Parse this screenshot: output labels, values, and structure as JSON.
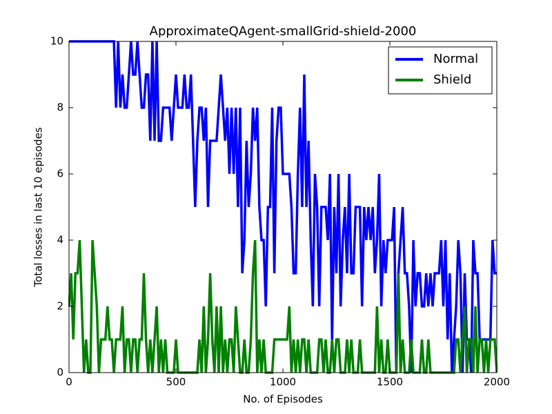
{
  "chart_data": {
    "type": "line",
    "title": "ApproximateQAgent-smallGrid-shield-2000",
    "x_label": "No. of Episodes",
    "y_label": "Total losses in last 10 episodes",
    "x": [
      0,
      10,
      20,
      30,
      40,
      50,
      60,
      70,
      80,
      90,
      100,
      110,
      120,
      130,
      140,
      150,
      160,
      170,
      180,
      190,
      200,
      210,
      220,
      230,
      240,
      250,
      260,
      270,
      280,
      290,
      300,
      310,
      320,
      330,
      340,
      350,
      360,
      370,
      380,
      390,
      400,
      410,
      420,
      430,
      440,
      450,
      460,
      470,
      480,
      490,
      500,
      510,
      520,
      530,
      540,
      550,
      560,
      570,
      580,
      590,
      600,
      610,
      620,
      630,
      640,
      650,
      660,
      670,
      680,
      690,
      700,
      710,
      720,
      730,
      740,
      750,
      760,
      770,
      780,
      790,
      800,
      810,
      820,
      830,
      840,
      850,
      860,
      870,
      880,
      890,
      900,
      910,
      920,
      930,
      940,
      950,
      960,
      970,
      980,
      990,
      1000,
      1010,
      1020,
      1030,
      1040,
      1050,
      1060,
      1070,
      1080,
      1090,
      1100,
      1110,
      1120,
      1130,
      1140,
      1150,
      1160,
      1170,
      1180,
      1190,
      1200,
      1210,
      1220,
      1230,
      1240,
      1250,
      1260,
      1270,
      1280,
      1290,
      1300,
      1310,
      1320,
      1330,
      1340,
      1350,
      1360,
      1370,
      1380,
      1390,
      1400,
      1410,
      1420,
      1430,
      1440,
      1450,
      1460,
      1470,
      1480,
      1490,
      1500,
      1510,
      1520,
      1530,
      1540,
      1550,
      1560,
      1570,
      1580,
      1590,
      1600,
      1610,
      1620,
      1630,
      1640,
      1650,
      1660,
      1670,
      1680,
      1690,
      1700,
      1710,
      1720,
      1730,
      1740,
      1750,
      1760,
      1770,
      1780,
      1790,
      1800,
      1810,
      1820,
      1830,
      1840,
      1850,
      1860,
      1870,
      1880,
      1890,
      1900,
      1910,
      1920,
      1930,
      1940,
      1950,
      1960,
      1970,
      1980,
      1990,
      2000
    ],
    "series": [
      {
        "name": "Normal",
        "color": "#0000ff",
        "values": [
          10,
          10,
          10,
          10,
          10,
          10,
          10,
          10,
          10,
          10,
          10,
          10,
          10,
          10,
          10,
          10,
          10,
          10,
          10,
          10,
          10,
          10,
          8,
          10,
          8,
          9,
          8,
          8,
          9,
          10,
          9,
          9,
          10,
          9,
          8,
          8,
          9,
          9,
          7,
          10,
          7,
          10,
          7,
          7,
          8,
          8,
          8,
          8,
          7,
          8,
          9,
          8,
          8,
          8,
          9,
          8,
          8,
          9,
          7,
          5,
          7,
          8,
          8,
          7,
          8,
          5,
          7,
          7,
          7,
          7,
          8,
          9,
          8,
          7,
          8,
          6,
          8,
          6,
          8,
          5,
          8,
          3,
          4,
          7,
          5,
          6,
          8,
          7,
          8,
          5,
          4,
          4,
          2,
          5,
          5,
          8,
          3,
          7,
          8,
          8,
          6,
          6,
          6,
          6,
          5,
          3,
          3,
          6,
          8,
          5,
          9,
          5,
          7,
          4,
          2,
          6,
          5,
          2,
          5,
          5,
          5,
          4,
          6,
          1,
          5,
          3,
          6,
          2,
          4,
          5,
          3,
          6,
          3,
          3,
          5,
          5,
          5,
          2,
          5,
          4,
          5,
          4,
          5,
          3,
          4,
          6,
          2,
          4,
          3,
          4,
          4,
          4,
          5,
          0,
          3,
          4,
          5,
          3,
          3,
          2,
          0,
          4,
          2,
          3,
          3,
          2,
          2,
          3,
          2,
          3,
          2,
          3,
          3,
          3,
          4,
          2,
          4,
          1,
          3,
          0,
          1,
          2,
          4,
          3,
          0,
          3,
          1,
          1,
          0,
          4,
          3,
          3,
          1,
          1,
          1,
          1,
          1,
          1,
          4,
          3,
          3
        ]
      },
      {
        "name": "Shield",
        "color": "#008000",
        "values": [
          2,
          3,
          1,
          3,
          3,
          4,
          2,
          0,
          1,
          0,
          0,
          4,
          3,
          2,
          0,
          1,
          1,
          1,
          2,
          1,
          1,
          0,
          1,
          1,
          1,
          2,
          0,
          1,
          1,
          0,
          1,
          1,
          0,
          1,
          1,
          3,
          1,
          0,
          1,
          0,
          1,
          2,
          0,
          1,
          0,
          1,
          0,
          0,
          0,
          0,
          1,
          0,
          0,
          0,
          0,
          0,
          0,
          0,
          0,
          0,
          0,
          1,
          0,
          2,
          0,
          1,
          3,
          1,
          0,
          2,
          0,
          2,
          0,
          1,
          0,
          1,
          1,
          0,
          2,
          1,
          0,
          0,
          1,
          0,
          0,
          1,
          3,
          4,
          0,
          1,
          0,
          1,
          0,
          0,
          0,
          0,
          1,
          1,
          1,
          1,
          1,
          1,
          1,
          2,
          0,
          1,
          0,
          1,
          0,
          1,
          1,
          0,
          1,
          0,
          0,
          0,
          0,
          1,
          1,
          0,
          1,
          0,
          0,
          1,
          0,
          1,
          1,
          0,
          0,
          0,
          1,
          0,
          1,
          0,
          0,
          0,
          1,
          0,
          0,
          0,
          0,
          0,
          0,
          0,
          2,
          0,
          1,
          0,
          0,
          1,
          0,
          0,
          0,
          0,
          3,
          0,
          1,
          0,
          0,
          0,
          1,
          0,
          0,
          0,
          0,
          1,
          0,
          0,
          1,
          0,
          0,
          0,
          0,
          0,
          0,
          0,
          0,
          0,
          0,
          0,
          0,
          1,
          1,
          0,
          1,
          2,
          0,
          1,
          1,
          0,
          2,
          0,
          1,
          1,
          0,
          1,
          0,
          1,
          1,
          1,
          0
        ]
      }
    ],
    "xlim": [
      0,
      2000
    ],
    "xticks": [
      0,
      500,
      1000,
      1500,
      2000
    ],
    "ylim": [
      0,
      10
    ],
    "yticks": [
      0,
      2,
      4,
      6,
      8,
      10
    ],
    "legend": "upper right"
  }
}
